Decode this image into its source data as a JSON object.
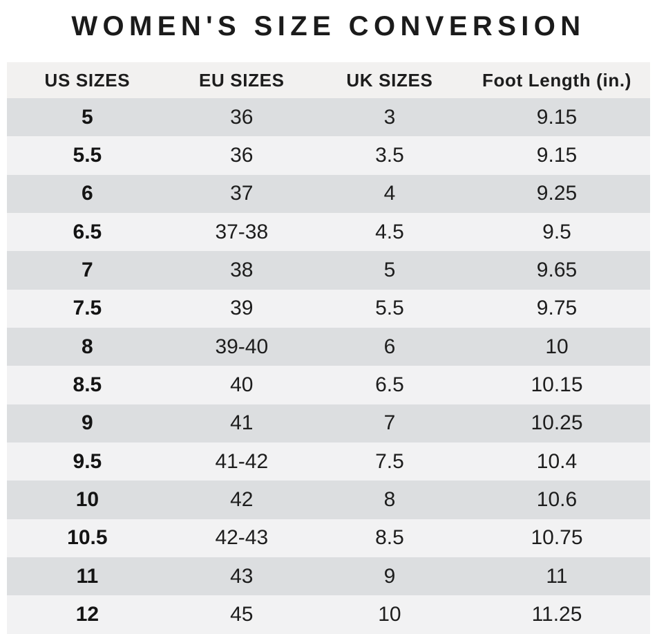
{
  "title": "WOMEN'S SIZE CONVERSION",
  "colors": {
    "header_bg": "#f2f1f0",
    "row_dark": "#dcdee0",
    "row_light": "#f2f2f3",
    "text": "#1d1d1d",
    "title_text": "#1b1b1b",
    "page_bg": "#ffffff"
  },
  "chart_data": {
    "type": "table",
    "title": "WOMEN'S SIZE CONVERSION",
    "columns": [
      "US SIZES",
      "EU SIZES",
      "UK SIZES",
      "Foot Length (in.)"
    ],
    "column_keys": [
      "us-size",
      "eu-size",
      "uk-size",
      "foot-length"
    ],
    "rows": [
      [
        "5",
        "36",
        "3",
        "9.15"
      ],
      [
        "5.5",
        "36",
        "3.5",
        "9.15"
      ],
      [
        "6",
        "37",
        "4",
        "9.25"
      ],
      [
        "6.5",
        "37-38",
        "4.5",
        "9.5"
      ],
      [
        "7",
        "38",
        "5",
        "9.65"
      ],
      [
        "7.5",
        "39",
        "5.5",
        "9.75"
      ],
      [
        "8",
        "39-40",
        "6",
        "10"
      ],
      [
        "8.5",
        "40",
        "6.5",
        "10.15"
      ],
      [
        "9",
        "41",
        "7",
        "10.25"
      ],
      [
        "9.5",
        "41-42",
        "7.5",
        "10.4"
      ],
      [
        "10",
        "42",
        "8",
        "10.6"
      ],
      [
        "10.5",
        "42-43",
        "8.5",
        "10.75"
      ],
      [
        "11",
        "43",
        "9",
        "11"
      ],
      [
        "12",
        "45",
        "10",
        "11.25"
      ]
    ]
  }
}
